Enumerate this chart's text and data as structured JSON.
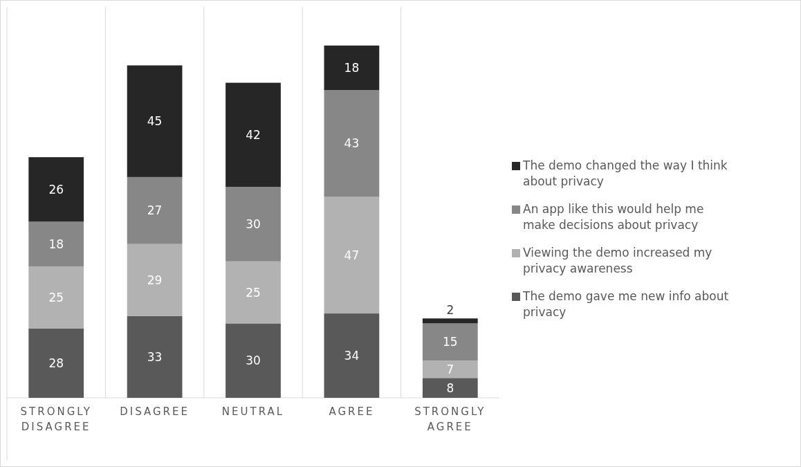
{
  "chart_data": {
    "type": "bar",
    "stacked": true,
    "data_labels": true,
    "grid": "x",
    "legend": "right",
    "categories": [
      "STRONGLY DISAGREE",
      "DISAGREE",
      "NEUTRAL",
      "AGREE",
      "STRONGLY AGREE"
    ],
    "series": [
      {
        "name": "The demo gave me new info about privacy",
        "color": "#595959",
        "values": [
          28,
          33,
          30,
          34,
          8
        ]
      },
      {
        "name": "Viewing the demo increased my privacy awareness",
        "color": "#b2b2b2",
        "values": [
          25,
          29,
          25,
          47,
          7
        ]
      },
      {
        "name": "An app like this would help me make decisions about privacy",
        "color": "#878787",
        "values": [
          18,
          27,
          30,
          43,
          15
        ]
      },
      {
        "name": "The demo changed the way I think about privacy",
        "color": "#262626",
        "values": [
          26,
          45,
          42,
          18,
          2
        ]
      }
    ]
  }
}
